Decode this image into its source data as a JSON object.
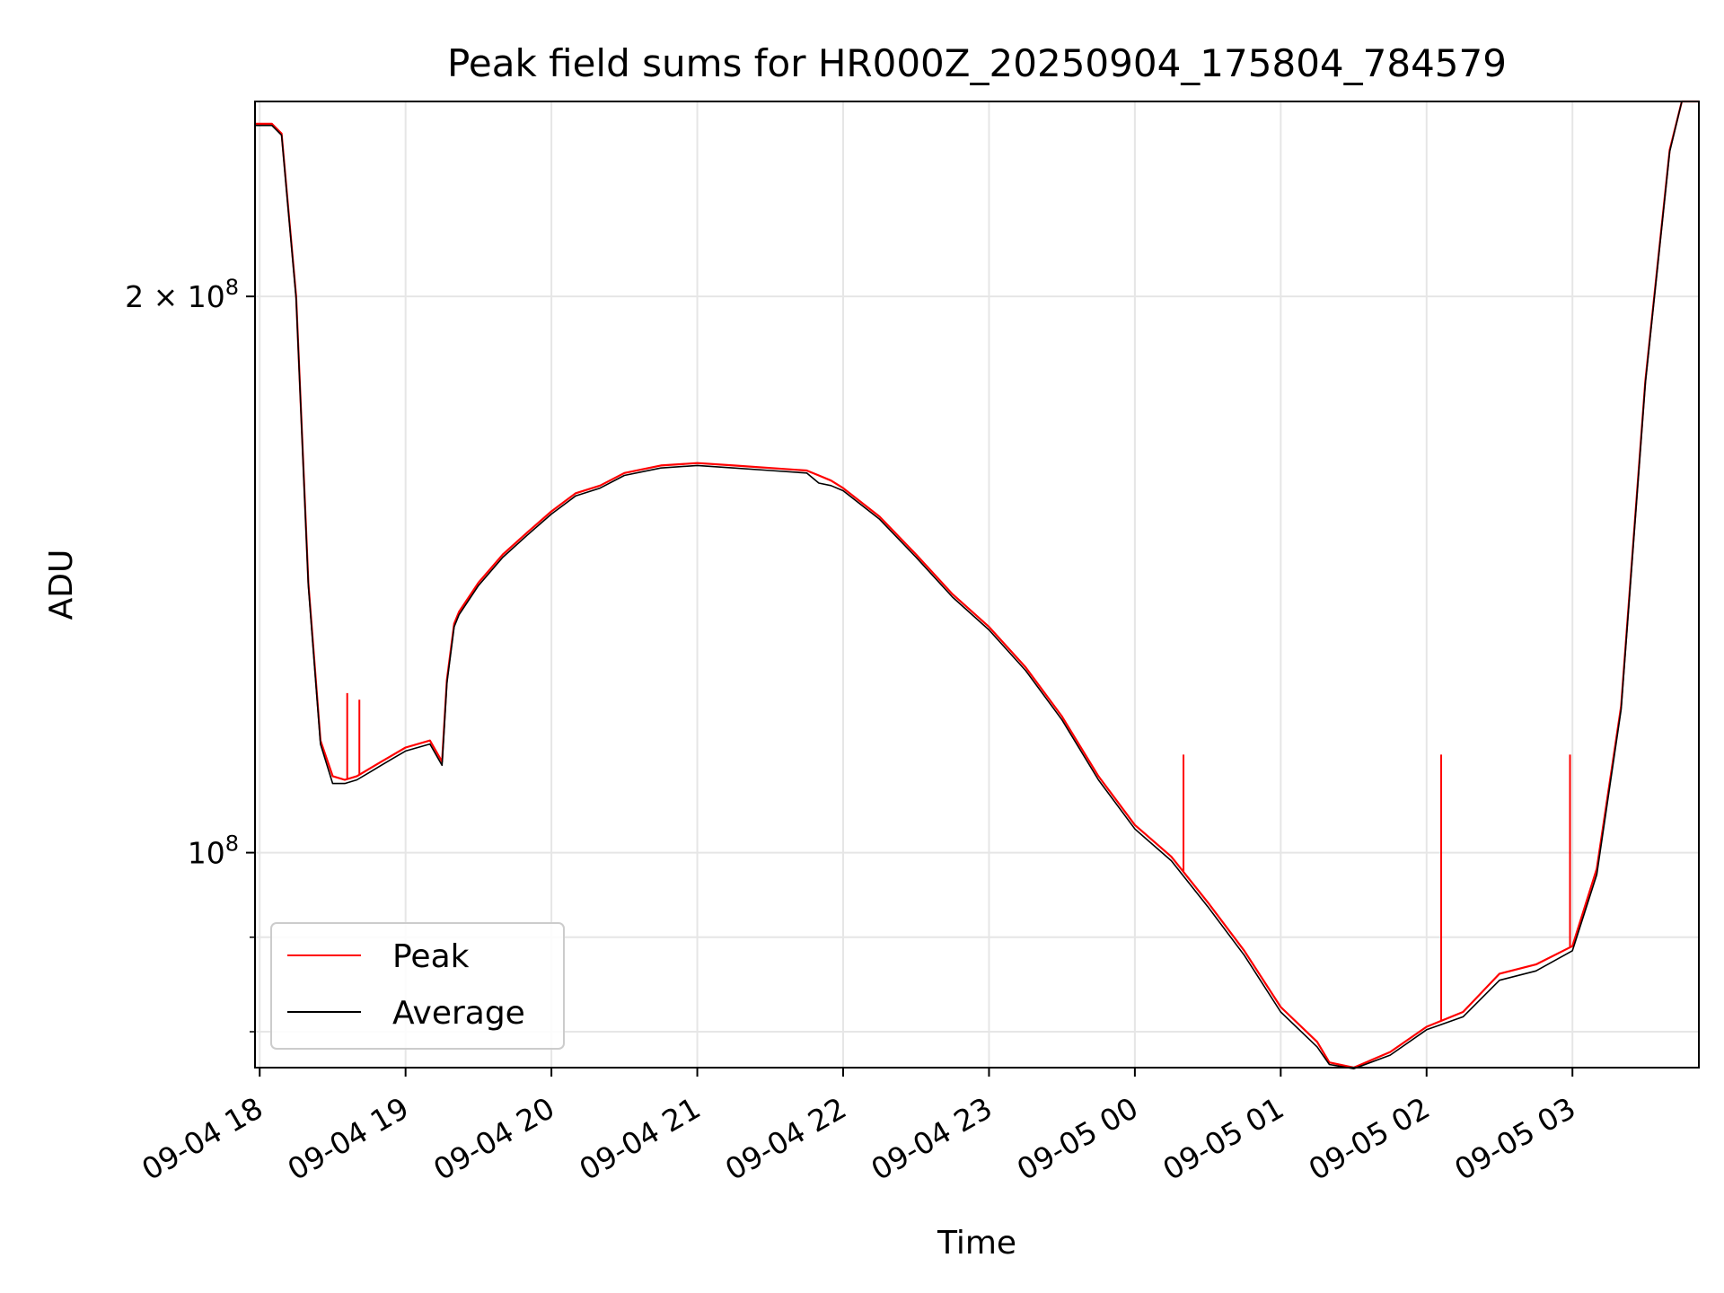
{
  "chart_data": {
    "type": "line",
    "title": "Peak field sums for HR000Z_20250904_175804_784579",
    "xlabel": "Time",
    "ylabel": "ADU",
    "yscale": "log",
    "ylim": [
      76500000,
      255000000
    ],
    "xlim": [
      "2025-09-04 17:58:04",
      "2025-09-05 03:52:00"
    ],
    "x_ticks": [
      "09-04 18",
      "09-04 19",
      "09-04 20",
      "09-04 21",
      "09-04 22",
      "09-04 23",
      "09-05 00",
      "09-05 01",
      "09-05 02",
      "09-05 03"
    ],
    "y_ticks": [
      {
        "value": 100000000,
        "mantissa": "",
        "exponent": "8"
      },
      {
        "value": 200000000,
        "mantissa": "2",
        "exponent": "8"
      }
    ],
    "grid": true,
    "legend_position": "lower-left",
    "series": [
      {
        "name": "Peak",
        "color": "#ff0000",
        "x": [
          "2025-09-04 17:58",
          "2025-09-04 18:05",
          "2025-09-04 18:09",
          "2025-09-04 18:15",
          "2025-09-04 18:20",
          "2025-09-04 18:25",
          "2025-09-04 18:30",
          "2025-09-04 18:35",
          "2025-09-04 18:40",
          "2025-09-04 18:45",
          "2025-09-04 18:50",
          "2025-09-04 18:55",
          "2025-09-04 19:00",
          "2025-09-04 19:10",
          "2025-09-04 19:15",
          "2025-09-04 19:17",
          "2025-09-04 19:20",
          "2025-09-04 19:22",
          "2025-09-04 19:30",
          "2025-09-04 19:40",
          "2025-09-04 19:50",
          "2025-09-04 20:00",
          "2025-09-04 20:10",
          "2025-09-04 20:20",
          "2025-09-04 20:30",
          "2025-09-04 20:45",
          "2025-09-04 21:00",
          "2025-09-04 21:15",
          "2025-09-04 21:30",
          "2025-09-04 21:45",
          "2025-09-04 21:50",
          "2025-09-04 21:55",
          "2025-09-04 22:00",
          "2025-09-04 22:15",
          "2025-09-04 22:30",
          "2025-09-04 22:45",
          "2025-09-04 23:00",
          "2025-09-04 23:15",
          "2025-09-04 23:30",
          "2025-09-04 23:45",
          "2025-09-05 00:00",
          "2025-09-05 00:15",
          "2025-09-05 00:30",
          "2025-09-05 00:45",
          "2025-09-05 01:00",
          "2025-09-05 01:15",
          "2025-09-05 01:20",
          "2025-09-05 01:30",
          "2025-09-05 01:45",
          "2025-09-05 02:00",
          "2025-09-05 02:15",
          "2025-09-05 02:30",
          "2025-09-05 02:45",
          "2025-09-05 03:00",
          "2025-09-05 03:10",
          "2025-09-05 03:20",
          "2025-09-05 03:30",
          "2025-09-05 03:40",
          "2025-09-05 03:45",
          "2025-09-05 03:52"
        ],
        "y": [
          248000000,
          248000000,
          245000000,
          200000000,
          140000000,
          115000000,
          110000000,
          109500000,
          110000000,
          111000000,
          112000000,
          113000000,
          114000000,
          115000000,
          112000000,
          124000000,
          133000000,
          135000000,
          140000000,
          145000000,
          149000000,
          153000000,
          156500000,
          158000000,
          160500000,
          162000000,
          162500000,
          162000000,
          161500000,
          161000000,
          160000000,
          159000000,
          157500000,
          152000000,
          145000000,
          138000000,
          132500000,
          126000000,
          118500000,
          110000000,
          103500000,
          99500000,
          94000000,
          88500000,
          82500000,
          79000000,
          77000000,
          76500000,
          78000000,
          80500000,
          82000000,
          86000000,
          87000000,
          89000000,
          98000000,
          120000000,
          180000000,
          240000000,
          255000000,
          255000000
        ],
        "spikes": [
          {
            "x": "2025-09-04 18:36",
            "y": 122000000
          },
          {
            "x": "2025-09-04 18:41",
            "y": 121000000
          },
          {
            "x": "2025-09-05 00:20",
            "y": 113000000
          },
          {
            "x": "2025-09-05 02:06",
            "y": 113000000
          },
          {
            "x": "2025-09-05 02:59",
            "y": 113000000
          }
        ]
      },
      {
        "name": "Average",
        "color": "#000000",
        "x": [
          "2025-09-04 17:58",
          "2025-09-04 18:05",
          "2025-09-04 18:09",
          "2025-09-04 18:15",
          "2025-09-04 18:20",
          "2025-09-04 18:25",
          "2025-09-04 18:30",
          "2025-09-04 18:35",
          "2025-09-04 18:40",
          "2025-09-04 18:45",
          "2025-09-04 18:50",
          "2025-09-04 18:55",
          "2025-09-04 19:00",
          "2025-09-04 19:10",
          "2025-09-04 19:15",
          "2025-09-04 19:17",
          "2025-09-04 19:20",
          "2025-09-04 19:22",
          "2025-09-04 19:30",
          "2025-09-04 19:40",
          "2025-09-04 19:50",
          "2025-09-04 20:00",
          "2025-09-04 20:10",
          "2025-09-04 20:20",
          "2025-09-04 20:30",
          "2025-09-04 20:45",
          "2025-09-04 21:00",
          "2025-09-04 21:15",
          "2025-09-04 21:30",
          "2025-09-04 21:45",
          "2025-09-04 21:50",
          "2025-09-04 21:55",
          "2025-09-04 22:00",
          "2025-09-04 22:15",
          "2025-09-04 22:30",
          "2025-09-04 22:45",
          "2025-09-04 23:00",
          "2025-09-04 23:15",
          "2025-09-04 23:30",
          "2025-09-04 23:45",
          "2025-09-05 00:00",
          "2025-09-05 00:15",
          "2025-09-05 00:30",
          "2025-09-05 00:45",
          "2025-09-05 01:00",
          "2025-09-05 01:15",
          "2025-09-05 01:20",
          "2025-09-05 01:30",
          "2025-09-05 01:45",
          "2025-09-05 02:00",
          "2025-09-05 02:15",
          "2025-09-05 02:30",
          "2025-09-05 02:45",
          "2025-09-05 03:00",
          "2025-09-05 03:10",
          "2025-09-05 03:20",
          "2025-09-05 03:30",
          "2025-09-05 03:40",
          "2025-09-05 03:45",
          "2025-09-05 03:52"
        ],
        "y": [
          247500000,
          247500000,
          244500000,
          199500000,
          139500000,
          114500000,
          109000000,
          109000000,
          109500000,
          110500000,
          111500000,
          112500000,
          113500000,
          114500000,
          111500000,
          123500000,
          132500000,
          134500000,
          139500000,
          144500000,
          148500000,
          152500000,
          156000000,
          157500000,
          160000000,
          161500000,
          162000000,
          161500000,
          161000000,
          160500000,
          158500000,
          158000000,
          157000000,
          151500000,
          144500000,
          137500000,
          132000000,
          125500000,
          118000000,
          109500000,
          103000000,
          99000000,
          93500000,
          88000000,
          82000000,
          78500000,
          76800000,
          76400000,
          77700000,
          80200000,
          81500000,
          85300000,
          86300000,
          88500000,
          97300000,
          119500000,
          179500000,
          239500000,
          255000000,
          255000000
        ],
        "spikes": []
      }
    ]
  }
}
